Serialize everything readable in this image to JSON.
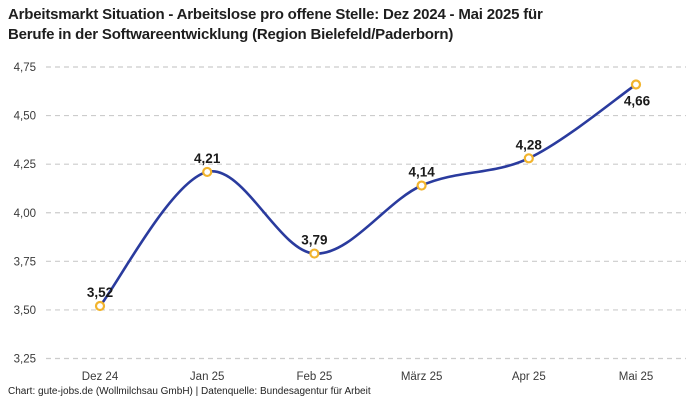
{
  "header": {
    "title_line1": "Arbeitsmarkt Situation - Arbeitslose pro offene Stelle: Dez 2024 - Mai 2025 für",
    "title_line2": "Berufe in der Softwareentwicklung (Region Bielefeld/Paderborn)"
  },
  "footer": {
    "credit": "Chart: gute-jobs.de (Wollmilchsau GmbH) | Datenquelle: Bundesagentur für Arbeit"
  },
  "chart_data": {
    "type": "line",
    "title": "Arbeitsmarkt Situation - Arbeitslose pro offene Stelle: Dez 2024 - Mai 2025 für Berufe in der Softwareentwicklung (Region Bielefeld/Paderborn)",
    "categories": [
      "Dez 24",
      "Jan 25",
      "Feb 25",
      "März 25",
      "Apr 25",
      "Mai 25"
    ],
    "values": [
      3.52,
      4.21,
      3.79,
      4.14,
      4.28,
      4.66
    ],
    "value_labels": [
      "3,52",
      "4,21",
      "3,79",
      "4,14",
      "4,28",
      "4,66"
    ],
    "ylim": [
      3.25,
      4.75
    ],
    "y_ticks": [
      4.75,
      4.5,
      4.25,
      4.0,
      3.75,
      3.5,
      3.25
    ],
    "y_tick_labels": [
      "4,75",
      "4,50",
      "4,25",
      "4,00",
      "3,75",
      "3,50",
      "3,25"
    ],
    "xlabel": "",
    "ylabel": "",
    "grid": "horizontal-dashed",
    "legend": "none",
    "marker_style": "open-circle",
    "colors": {
      "line": "#2a3b9e",
      "marker_ring": "#f2b42d",
      "marker_fill": "#ffffff",
      "gridline": "#cccccc",
      "value_label": "#1a1a1a",
      "axis_text": "#3a3a3a",
      "title": "#1e1e1e"
    }
  }
}
